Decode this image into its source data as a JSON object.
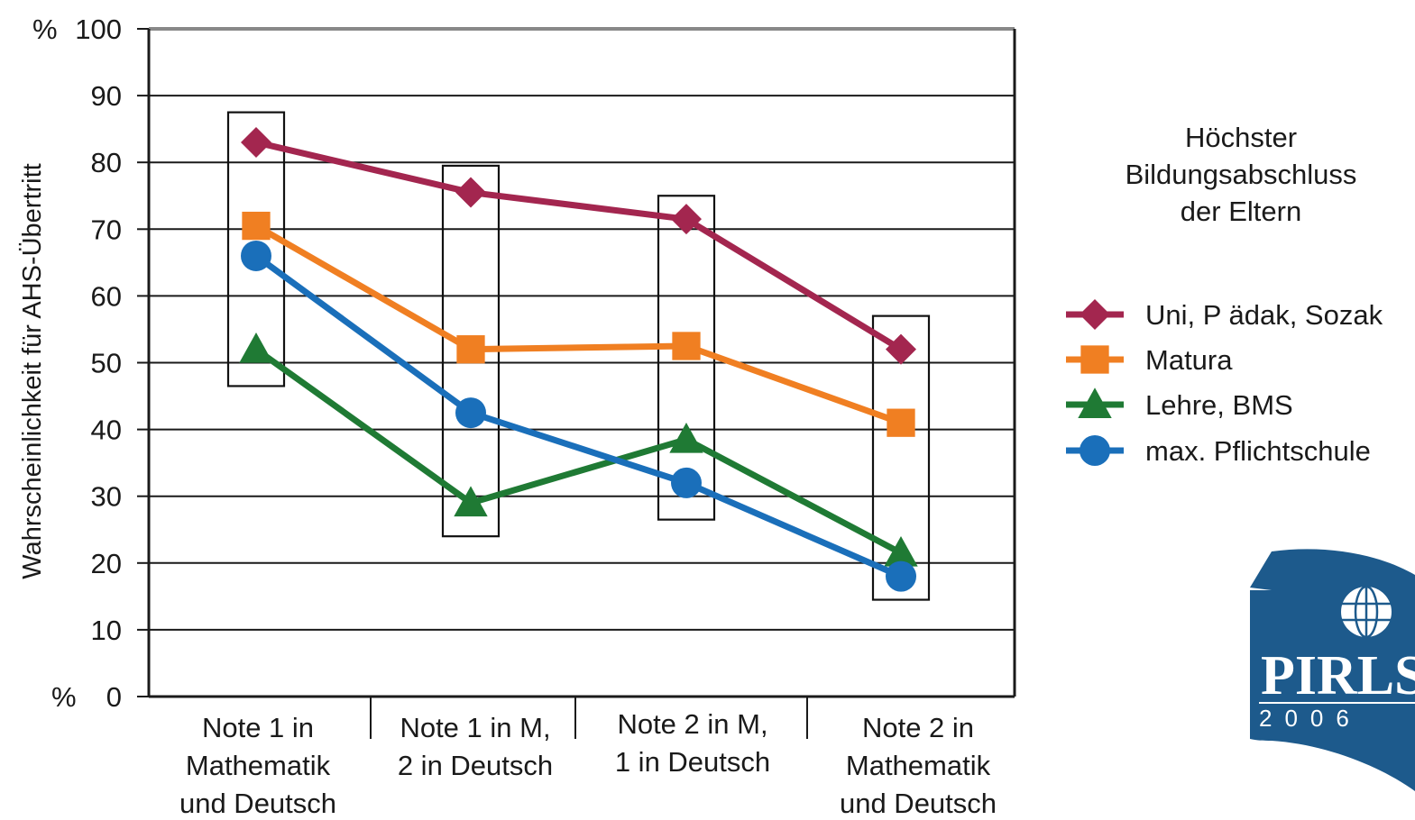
{
  "chart_data": {
    "type": "line",
    "ylabel": "Wahrscheinlichkeit für AHS-Übertritt",
    "y_unit_top": "%",
    "y_unit_bottom": "%",
    "ylim": [
      0,
      100
    ],
    "yticks": [
      "0",
      "10",
      "20",
      "30",
      "40",
      "50",
      "60",
      "70",
      "80",
      "90",
      "100"
    ],
    "categories": [
      [
        "Note 1 in",
        "Mathematik",
        "und Deutsch"
      ],
      [
        "Note 1 in M,",
        "2 in Deutsch"
      ],
      [
        "Note 2 in M,",
        "1 in Deutsch"
      ],
      [
        "Note 2 in",
        "Mathematik",
        "und Deutsch"
      ]
    ],
    "legend_title": [
      "Höchster",
      "Bildungsabschluss",
      "der Eltern"
    ],
    "legend_position": "right",
    "grid": true,
    "series": [
      {
        "name": "Uni, P ädak, Sozak",
        "marker": "diamond",
        "color": "#a3264f",
        "values": [
          83,
          75.5,
          71.5,
          52
        ]
      },
      {
        "name": "Matura",
        "marker": "square",
        "color": "#f07f22",
        "values": [
          70.5,
          52,
          52.5,
          41
        ]
      },
      {
        "name": "Lehre, BMS",
        "marker": "triangle",
        "color": "#1f7a34",
        "values": [
          52,
          29,
          38.5,
          21.5
        ]
      },
      {
        "name": "max. Pflichtschule",
        "marker": "circle",
        "color": "#1a6fba",
        "values": [
          66,
          42.5,
          32,
          18
        ]
      }
    ],
    "highlight_boxes": [
      {
        "category": 0,
        "range": [
          46.5,
          87.5
        ]
      },
      {
        "category": 1,
        "range": [
          24,
          79.5
        ]
      },
      {
        "category": 2,
        "range": [
          26.5,
          75
        ]
      },
      {
        "category": 3,
        "range": [
          14.5,
          57
        ]
      }
    ]
  },
  "logo": {
    "text": "PIRLS",
    "year": "2006",
    "emblem": "IEA",
    "color": "#1d5a8c"
  }
}
